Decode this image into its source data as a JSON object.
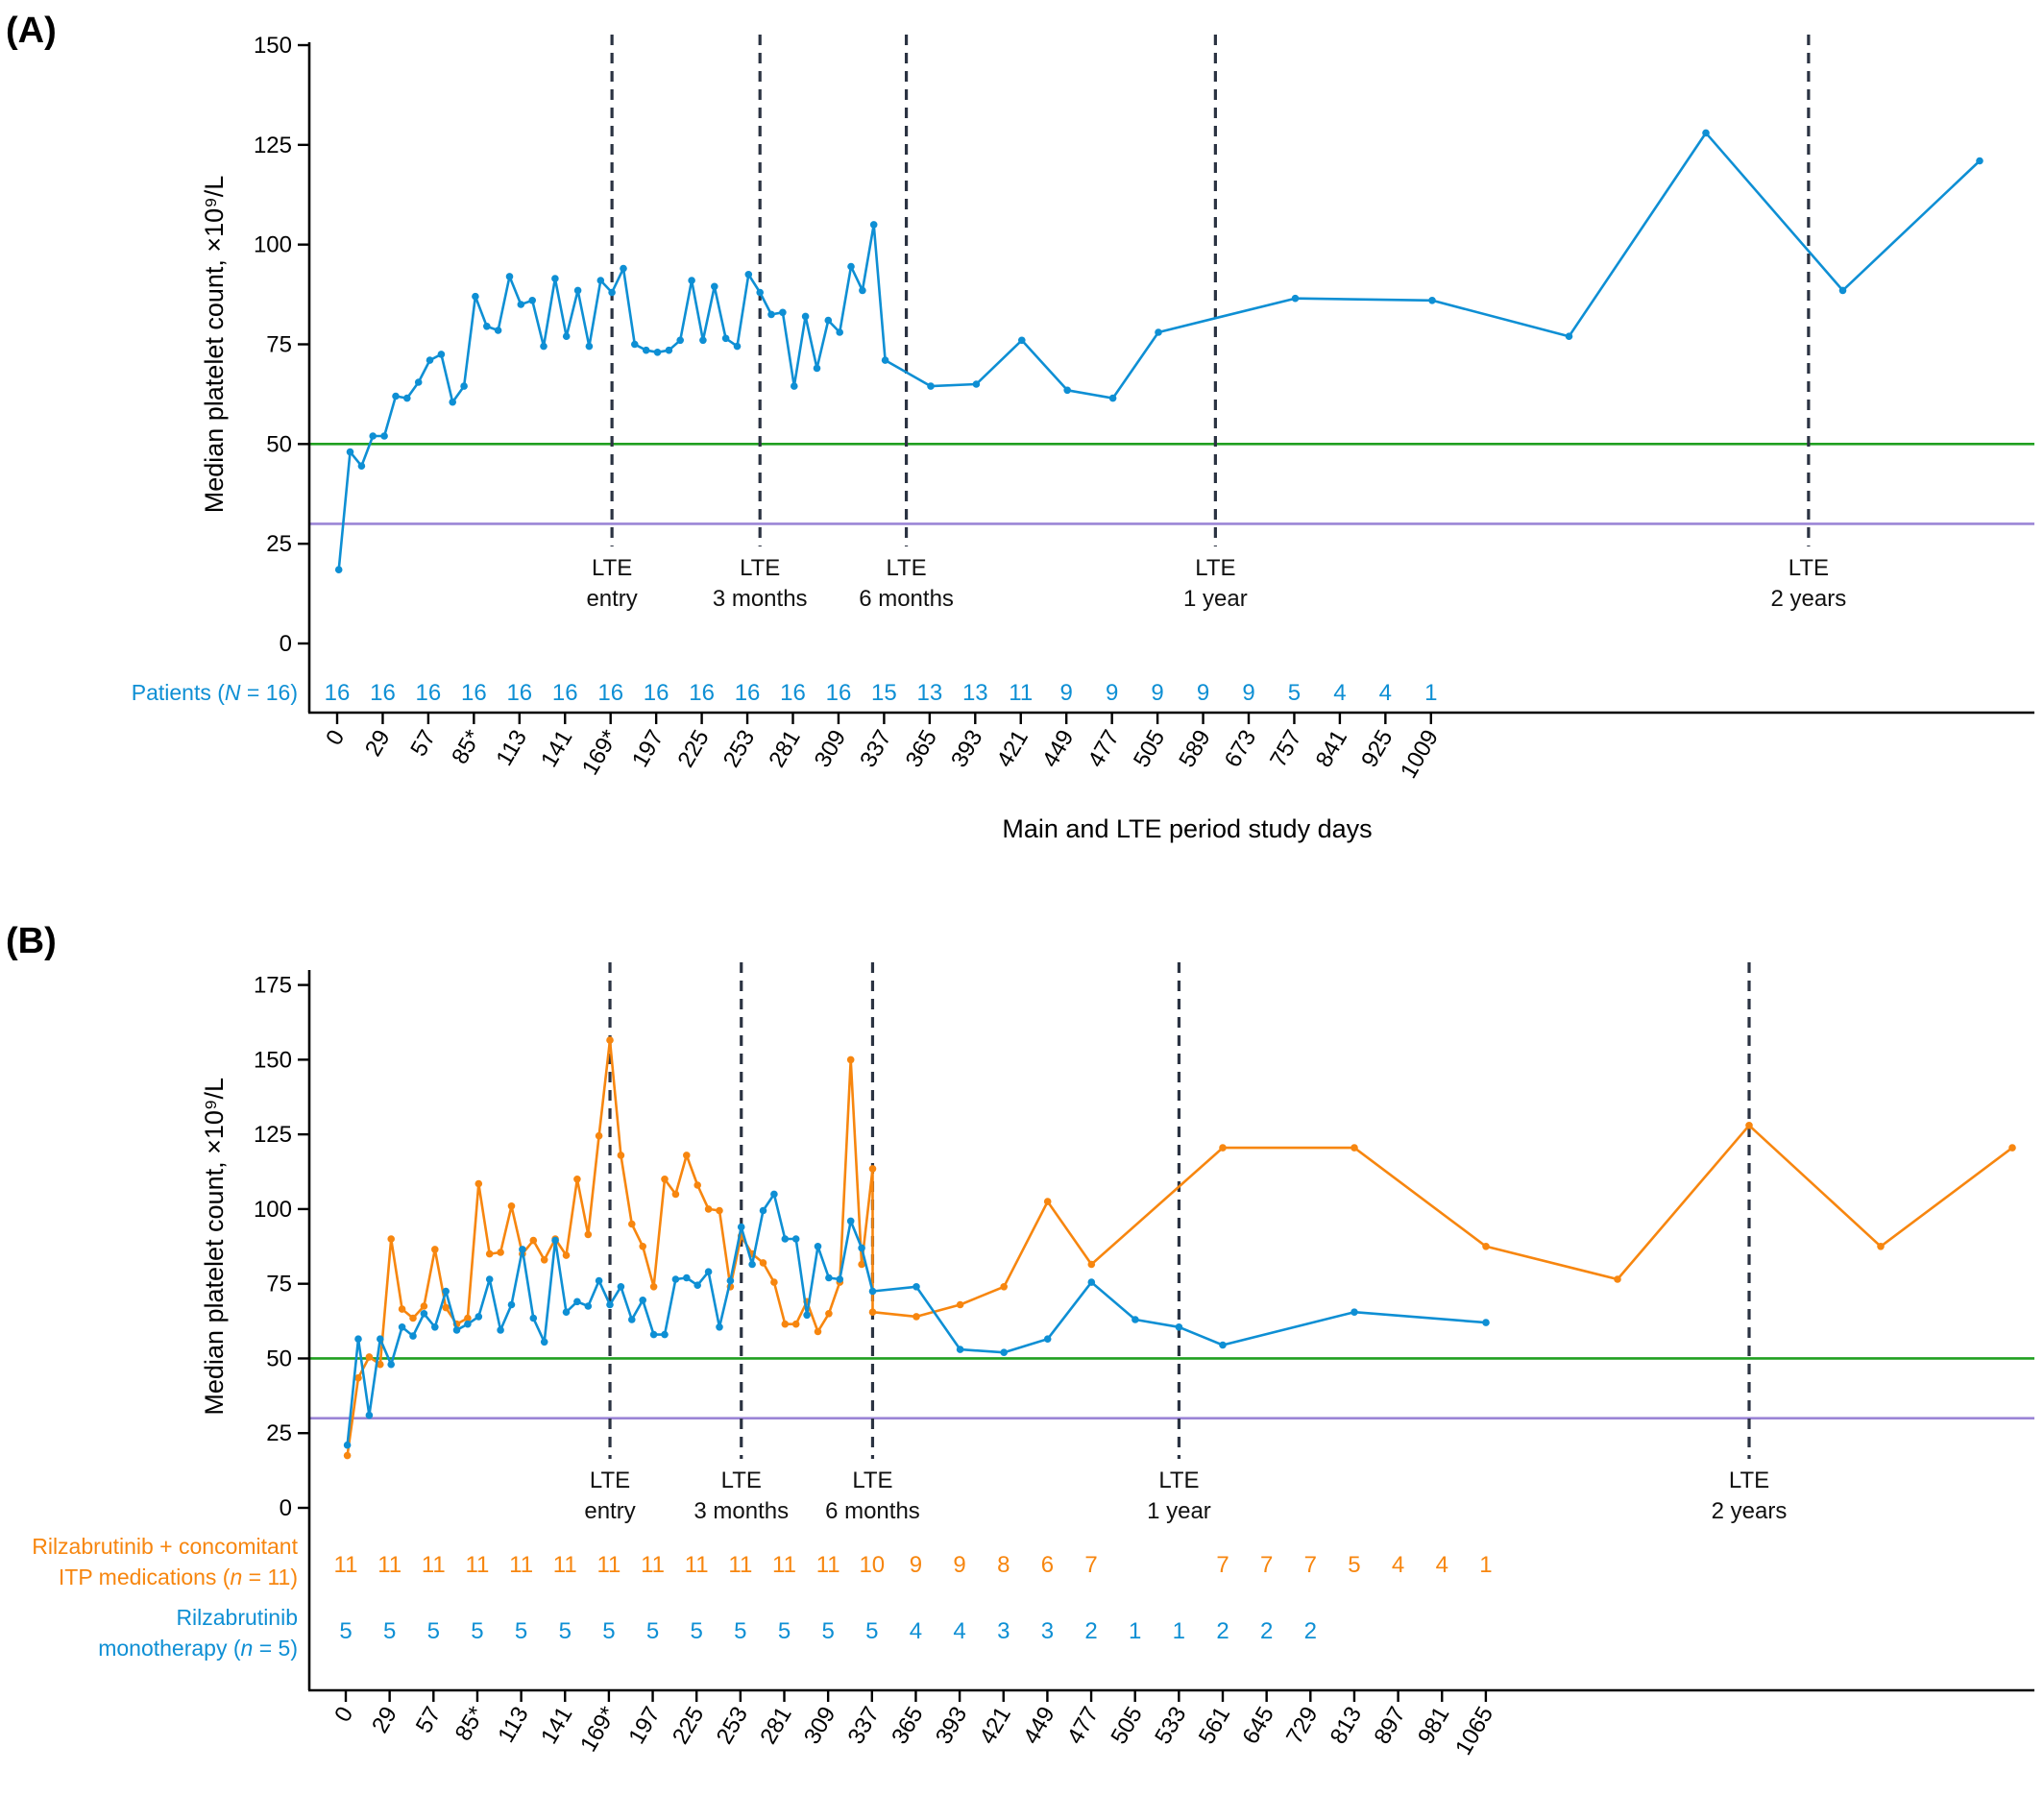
{
  "colors": {
    "blue": "#0e8fd4",
    "orange": "#f7860f",
    "green": "#20a020",
    "purple": "#9b85d6",
    "dash": "#2b3342",
    "axis": "#000000"
  },
  "chart_data": [
    {
      "type": "line",
      "panel": "(A)",
      "xlabel": "Main and LTE period study days",
      "ylabel": "Median platelet count, ×10⁹/L",
      "ylim": [
        0,
        150
      ],
      "yticks": [
        0,
        25,
        50,
        75,
        100,
        125,
        150
      ],
      "xtick_labels": [
        "0",
        "29",
        "57",
        "85*",
        "113",
        "141",
        "169*",
        "197",
        "225",
        "253",
        "281",
        "309",
        "337",
        "365",
        "393",
        "421",
        "449",
        "477",
        "505",
        "589",
        "673",
        "757",
        "841",
        "925",
        "1009"
      ],
      "reference_lines": [
        50,
        30
      ],
      "vlines": [
        {
          "line1": "LTE",
          "line2": "entry",
          "x": 169
        },
        {
          "line1": "LTE",
          "line2": "3 months",
          "x": 260
        },
        {
          "line1": "LTE",
          "line2": "6 months",
          "x": 350
        },
        {
          "line1": "LTE",
          "line2": "1 year",
          "x": 540
        },
        {
          "line1": "LTE",
          "line2": "2 years",
          "x": 904
        }
      ],
      "series": [
        {
          "color": "blue",
          "points": [
            [
              1,
              18.5
            ],
            [
              8,
              48
            ],
            [
              15,
              44.5
            ],
            [
              22,
              52
            ],
            [
              29,
              52
            ],
            [
              36,
              62
            ],
            [
              43,
              61.5
            ],
            [
              50,
              65.5
            ],
            [
              57,
              71
            ],
            [
              64,
              72.5
            ],
            [
              71,
              60.5
            ],
            [
              78,
              64.5
            ],
            [
              85,
              87
            ],
            [
              92,
              79.5
            ],
            [
              99,
              78.5
            ],
            [
              106,
              92
            ],
            [
              113,
              85
            ],
            [
              120,
              86
            ],
            [
              127,
              74.5
            ],
            [
              134,
              91.5
            ],
            [
              141,
              77
            ],
            [
              148,
              88.5
            ],
            [
              155,
              74.5
            ],
            [
              162,
              91
            ],
            [
              169,
              88
            ],
            [
              176,
              94
            ],
            [
              183,
              75
            ],
            [
              190,
              73.5
            ],
            [
              197,
              73
            ],
            [
              204,
              73.5
            ],
            [
              211,
              76
            ],
            [
              218,
              91
            ],
            [
              225,
              76
            ],
            [
              232,
              89.5
            ],
            [
              239,
              76.5
            ],
            [
              246,
              74.5
            ],
            [
              253,
              92.5
            ],
            [
              260,
              88
            ],
            [
              267,
              82.5
            ],
            [
              274,
              83
            ],
            [
              281,
              64.5
            ],
            [
              288,
              82
            ],
            [
              295,
              69
            ],
            [
              302,
              81
            ],
            [
              309,
              78
            ],
            [
              316,
              94.5
            ],
            [
              323,
              88.5
            ],
            [
              330,
              105
            ],
            [
              337,
              71
            ],
            [
              365,
              64.5
            ],
            [
              393,
              65
            ],
            [
              421,
              76
            ],
            [
              449,
              63.5
            ],
            [
              477,
              61.5
            ],
            [
              505,
              78
            ],
            [
              589,
              86.5
            ],
            [
              673,
              86
            ],
            [
              757,
              77
            ],
            [
              841,
              128
            ],
            [
              925,
              88.5
            ],
            [
              1009,
              121
            ]
          ]
        }
      ],
      "counts_label_prefix": "Patients (",
      "counts_label_italic": "N",
      "counts_label_suffix": " = 16)",
      "counts": [
        "16",
        "16",
        "16",
        "16",
        "16",
        "16",
        "16",
        "16",
        "16",
        "16",
        "16",
        "16",
        "15",
        "13",
        "13",
        "11",
        "9",
        "9",
        "9",
        "9",
        "9",
        "5",
        "4",
        "4",
        "1"
      ]
    },
    {
      "type": "line",
      "panel": "(B)",
      "xlabel": "Main and LTE period study days",
      "ylabel": "Median platelet count, ×10⁹/L",
      "ylim": [
        0,
        175
      ],
      "yticks": [
        0,
        25,
        50,
        75,
        100,
        125,
        150,
        175
      ],
      "xtick_labels": [
        "0",
        "29",
        "57",
        "85*",
        "113",
        "141",
        "169*",
        "197",
        "225",
        "253",
        "281",
        "309",
        "337",
        "365",
        "393",
        "421",
        "449",
        "477",
        "505",
        "533",
        "561",
        "645",
        "729",
        "813",
        "897",
        "981",
        "1065"
      ],
      "reference_lines": [
        50,
        30
      ],
      "vlines": [
        {
          "line1": "LTE",
          "line2": "entry",
          "x": 169
        },
        {
          "line1": "LTE",
          "line2": "3 months",
          "x": 253
        },
        {
          "line1": "LTE",
          "line2": "6 months",
          "x": 337
        },
        {
          "line1": "LTE",
          "line2": "1 year",
          "x": 533
        },
        {
          "line1": "LTE",
          "line2": "2 years",
          "x": 897
        }
      ],
      "series": [
        {
          "color": "orange",
          "points": [
            [
              1,
              17.5
            ],
            [
              8,
              43.5
            ],
            [
              15,
              50.5
            ],
            [
              22,
              48
            ],
            [
              29,
              90
            ],
            [
              36,
              66.5
            ],
            [
              43,
              63.5
            ],
            [
              50,
              67.5
            ],
            [
              57,
              86.5
            ],
            [
              64,
              67
            ],
            [
              71,
              61.5
            ],
            [
              78,
              63.5
            ],
            [
              85,
              108.5
            ],
            [
              92,
              85
            ],
            [
              99,
              85.5
            ],
            [
              106,
              101
            ],
            [
              113,
              85
            ],
            [
              120,
              89.5
            ],
            [
              127,
              83
            ],
            [
              134,
              90
            ],
            [
              141,
              84.5
            ],
            [
              148,
              110
            ],
            [
              155,
              91.5
            ],
            [
              162,
              124.5
            ],
            [
              169,
              156.5
            ],
            [
              176,
              118
            ],
            [
              183,
              95
            ],
            [
              190,
              87.5
            ],
            [
              197,
              74
            ],
            [
              204,
              110
            ],
            [
              211,
              105
            ],
            [
              218,
              118
            ],
            [
              225,
              108
            ],
            [
              232,
              100
            ],
            [
              239,
              99.5
            ],
            [
              246,
              74
            ],
            [
              253,
              91
            ],
            [
              260,
              85
            ],
            [
              267,
              82
            ],
            [
              274,
              75.5
            ],
            [
              281,
              61.5
            ],
            [
              288,
              61.5
            ],
            [
              295,
              69
            ],
            [
              302,
              59
            ],
            [
              309,
              65
            ],
            [
              316,
              75.5
            ],
            [
              323,
              150
            ],
            [
              330,
              81.5
            ],
            [
              337,
              113.5
            ],
            [
              337,
              65.5
            ],
            [
              365,
              64
            ],
            [
              393,
              68
            ],
            [
              421,
              74
            ],
            [
              449,
              102.5
            ],
            [
              477,
              81.5
            ],
            [
              561,
              120.5
            ],
            [
              645,
              120.5
            ],
            [
              729,
              87.5
            ],
            [
              813,
              76.5
            ],
            [
              897,
              128
            ],
            [
              981,
              87.5
            ],
            [
              1065,
              120.5
            ]
          ]
        },
        {
          "color": "blue",
          "points": [
            [
              1,
              21
            ],
            [
              8,
              56.5
            ],
            [
              15,
              31
            ],
            [
              22,
              56.5
            ],
            [
              29,
              48
            ],
            [
              36,
              60.5
            ],
            [
              43,
              57.5
            ],
            [
              50,
              65
            ],
            [
              57,
              60.5
            ],
            [
              64,
              72.5
            ],
            [
              71,
              59.5
            ],
            [
              78,
              61.5
            ],
            [
              85,
              64
            ],
            [
              92,
              76.5
            ],
            [
              99,
              59.5
            ],
            [
              106,
              68
            ],
            [
              113,
              86.5
            ],
            [
              120,
              63.5
            ],
            [
              127,
              55.5
            ],
            [
              134,
              89.5
            ],
            [
              141,
              65.5
            ],
            [
              148,
              69
            ],
            [
              155,
              67.5
            ],
            [
              162,
              76
            ],
            [
              169,
              68
            ],
            [
              176,
              74
            ],
            [
              183,
              63
            ],
            [
              190,
              69.5
            ],
            [
              197,
              58
            ],
            [
              204,
              58
            ],
            [
              211,
              76.5
            ],
            [
              218,
              77
            ],
            [
              225,
              74.5
            ],
            [
              232,
              79
            ],
            [
              239,
              60.5
            ],
            [
              246,
              76
            ],
            [
              253,
              94
            ],
            [
              260,
              81.5
            ],
            [
              267,
              99.5
            ],
            [
              274,
              105
            ],
            [
              281,
              90
            ],
            [
              288,
              90
            ],
            [
              295,
              64.5
            ],
            [
              302,
              87.5
            ],
            [
              309,
              77
            ],
            [
              316,
              76.5
            ],
            [
              323,
              96
            ],
            [
              330,
              87
            ],
            [
              337,
              72.5
            ],
            [
              365,
              74
            ],
            [
              393,
              53
            ],
            [
              421,
              52
            ],
            [
              449,
              56.5
            ],
            [
              477,
              75.5
            ],
            [
              505,
              63
            ],
            [
              533,
              60.5
            ],
            [
              561,
              54.5
            ],
            [
              645,
              65.5
            ],
            [
              729,
              62
            ]
          ]
        }
      ],
      "row1_label_line1": "Rilzabrutinib + concomitant",
      "row1_label_line2a": "ITP medications (",
      "row1_label_line2b": "n",
      "row1_label_line2c": " = 11)",
      "row2_label_line1": "Rilzabrutinib",
      "row2_label_line2a": "monotherapy (",
      "row2_label_line2b": "n",
      "row2_label_line2c": " = 5)",
      "counts_row1": [
        "11",
        "11",
        "11",
        "11",
        "11",
        "11",
        "11",
        "11",
        "11",
        "11",
        "11",
        "11",
        "10",
        "9",
        "9",
        "8",
        "6",
        "7",
        "",
        "",
        "7",
        "7",
        "7",
        "5",
        "4",
        "4",
        "1"
      ],
      "counts_row2": [
        "5",
        "5",
        "5",
        "5",
        "5",
        "5",
        "5",
        "5",
        "5",
        "5",
        "5",
        "5",
        "5",
        "4",
        "4",
        "3",
        "3",
        "2",
        "1",
        "1",
        "2",
        "2",
        "2",
        "",
        "",
        "",
        ""
      ]
    }
  ]
}
